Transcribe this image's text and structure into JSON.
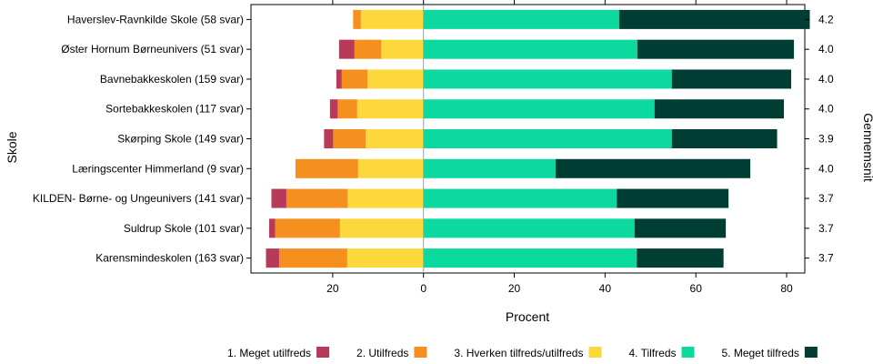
{
  "chart_data": {
    "type": "bar",
    "subtype": "diverging-stacked-horizontal",
    "title": "",
    "xlabel": "Procent",
    "ylabel": "Skole",
    "right_label": "Gennemsnit",
    "xlim": [
      -38,
      84
    ],
    "xticks": [
      -20,
      0,
      20,
      40,
      60,
      80
    ],
    "xtick_labels": [
      "20",
      "0",
      "20",
      "40",
      "60",
      "80"
    ],
    "grid": false,
    "legend_position": "bottom",
    "categories": [
      "Haverslev-Ravnkilde Skole (58 svar)",
      "Øster Hornum Børneunivers (51 svar)",
      "Bavnebakkeskolen (159 svar)",
      "Sortebakkeskolen (117 svar)",
      "Skørping Skole (149 svar)",
      "Læringscenter Himmerland (9 svar)",
      "KILDEN- Børne- og Ungeunivers (141 svar)",
      "Suldrup Skole (101 svar)",
      "Karensmindeskolen (163 svar)"
    ],
    "averages": [
      "4.2",
      "4.0",
      "4.0",
      "4.0",
      "3.9",
      "4.0",
      "3.7",
      "3.7",
      "3.7"
    ],
    "series": [
      {
        "name": "1. Meget utilfreds",
        "color": "#b83a5b",
        "side": "negative",
        "values": [
          0,
          3.4,
          1.2,
          1.7,
          2.0,
          0,
          3.3,
          1.3,
          2.9
        ]
      },
      {
        "name": "2. Utilfreds",
        "color": "#f5901e",
        "side": "negative",
        "values": [
          1.7,
          5.9,
          5.7,
          4.3,
          7.2,
          13.8,
          13.5,
          14.3,
          15.0
        ]
      },
      {
        "name": "3. Hverken tilfreds/utilfreds",
        "color": "#fdd83d",
        "side": "negative",
        "values": [
          13.8,
          9.3,
          12.3,
          14.6,
          12.7,
          14.4,
          16.7,
          18.4,
          16.8
        ]
      },
      {
        "name": "4. Tilfreds",
        "color": "#0bd99e",
        "side": "positive",
        "values": [
          43.1,
          47.1,
          54.7,
          50.9,
          54.7,
          29.1,
          42.6,
          46.5,
          47.0
        ]
      },
      {
        "name": "5. Meget tilfreds",
        "color": "#003d32",
        "side": "positive",
        "values": [
          42.0,
          34.5,
          26.3,
          28.5,
          23.2,
          42.9,
          24.6,
          20.1,
          19.1
        ]
      }
    ]
  }
}
